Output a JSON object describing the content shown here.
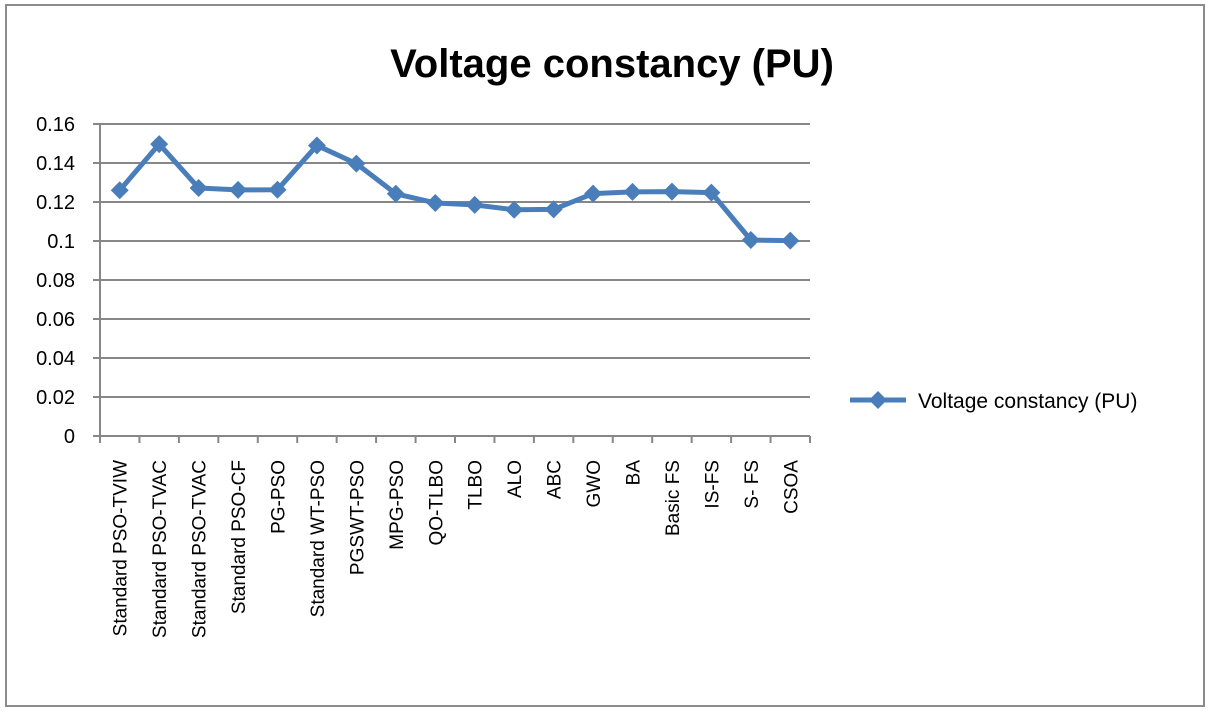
{
  "chart_data": {
    "type": "line",
    "title": "Voltage constancy (PU)",
    "xlabel": "",
    "ylabel": "",
    "ylim": [
      0,
      0.16
    ],
    "yticks": [
      "0",
      "0.02",
      "0.04",
      "0.06",
      "0.08",
      "0.1",
      "0.12",
      "0.14",
      "0.16"
    ],
    "grid": true,
    "legend_position": "right",
    "categories": [
      "Standard PSO-TVIW",
      "Standard PSO-TVAC",
      "Standard PSO-TVAC",
      "Standard PSO-CF",
      "PG-PSO",
      "Standard WT-PSO",
      "PGSWT-PSO",
      "MPG-PSO",
      "QO-TLBO",
      "TLBO",
      "ALO",
      "ABC",
      "GWO",
      "BA",
      "Basic FS",
      "IS-FS",
      "S- FS",
      "CSOA"
    ],
    "series": [
      {
        "name": "Voltage constancy (PU)",
        "color": "#4a7ebb",
        "values": [
          0.126,
          0.1497,
          0.1272,
          0.1262,
          0.1263,
          0.149,
          0.1397,
          0.1242,
          0.1195,
          0.1185,
          0.116,
          0.1162,
          0.1243,
          0.1252,
          0.1253,
          0.1248,
          0.1005,
          0.1002
        ]
      }
    ]
  }
}
